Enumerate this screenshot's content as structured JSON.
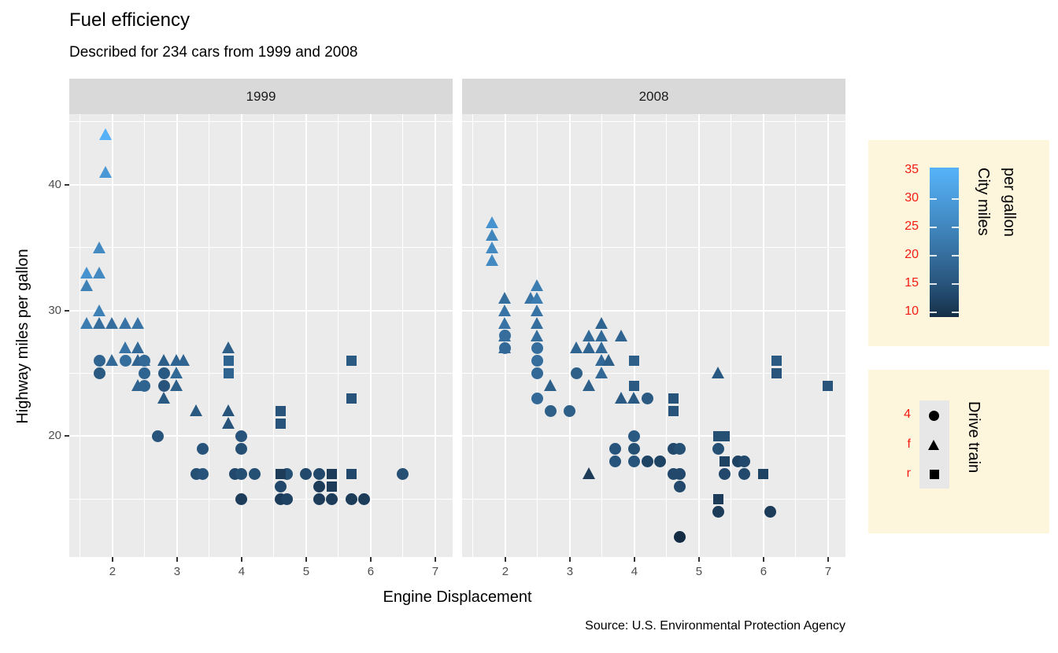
{
  "title": "Fuel efficiency",
  "subtitle": "Described for 234 cars from 1999 and 2008",
  "caption": "Source: U.S. Environmental Protection Agency",
  "axes": {
    "x": {
      "title": "Engine Displacement",
      "domain": [
        1.33,
        7.27
      ],
      "major_ticks": [
        2,
        3,
        4,
        5,
        6,
        7
      ],
      "minor_gridlines": [
        1.5,
        2.5,
        3.5,
        4.5,
        5.5,
        6.5
      ]
    },
    "y": {
      "title": "Highway miles per gallon",
      "domain": [
        10.4,
        45.6
      ],
      "major_ticks": [
        20,
        30,
        40
      ],
      "minor_gridlines": [
        15,
        25,
        35,
        45
      ]
    }
  },
  "facets": [
    {
      "label": "1999"
    },
    {
      "label": "2008"
    }
  ],
  "theme": {
    "panel_bg": "#EBEBEB",
    "strip_bg": "#D9D9D9",
    "grid_color": "#FFFFFF",
    "tick_label_color": "#4D4D4D",
    "strip_text_color": "#1A1A1A",
    "legend_bg": "#FDF6DC",
    "legend_label_color": "#F41B12",
    "text_color": "#000000"
  },
  "color_scale": {
    "low": "#132B43",
    "high": "#56B1F7",
    "domain": [
      9,
      35
    ]
  },
  "color_legend": {
    "title_lines": [
      "City miles",
      "per gallon"
    ],
    "tick_labels": [
      35,
      30,
      25,
      20,
      15,
      10
    ]
  },
  "shape_legend": {
    "title": "Drive train",
    "entries": [
      {
        "label": "4",
        "shape": "circle"
      },
      {
        "label": "f",
        "shape": "triangle"
      },
      {
        "label": "r",
        "shape": "square"
      }
    ]
  },
  "chart_data": {
    "type": "scatter",
    "title": "Fuel efficiency",
    "xlabel": "Engine Displacement",
    "ylabel": "Highway miles per gallon",
    "x_var": "displ",
    "y_var": "hwy",
    "color_var": "cty",
    "shape_var": "drv",
    "facet_var": "year",
    "shape_map": {
      "4": "circle",
      "f": "triangle",
      "r": "square"
    },
    "point_format": [
      "displ",
      "hwy",
      "drv",
      "cty"
    ],
    "facets": [
      {
        "year": "1999",
        "points": [
          [
            1.9,
            44,
            "f",
            35
          ],
          [
            1.9,
            41,
            "f",
            29
          ],
          [
            1.8,
            35,
            "f",
            26
          ],
          [
            1.6,
            33,
            "f",
            28
          ],
          [
            1.8,
            33,
            "f",
            26
          ],
          [
            1.6,
            32,
            "f",
            24
          ],
          [
            1.8,
            30,
            "f",
            24
          ],
          [
            1.6,
            29,
            "f",
            23
          ],
          [
            1.8,
            29,
            "f",
            20
          ],
          [
            2.0,
            29,
            "f",
            20
          ],
          [
            2.2,
            29,
            "f",
            21
          ],
          [
            2.4,
            29,
            "f",
            21
          ],
          [
            2.2,
            27,
            "f",
            21
          ],
          [
            2.4,
            27,
            "f",
            19
          ],
          [
            3.8,
            27,
            "f",
            17
          ],
          [
            2.0,
            26,
            "f",
            19
          ],
          [
            2.4,
            26,
            "f",
            18
          ],
          [
            2.5,
            26,
            "f",
            18
          ],
          [
            2.8,
            26,
            "f",
            17
          ],
          [
            3.0,
            26,
            "f",
            18
          ],
          [
            3.1,
            26,
            "f",
            18
          ],
          [
            3.0,
            25,
            "f",
            19
          ],
          [
            2.4,
            24,
            "f",
            18
          ],
          [
            3.0,
            24,
            "f",
            17
          ],
          [
            2.8,
            23,
            "f",
            16
          ],
          [
            3.3,
            22,
            "f",
            16
          ],
          [
            3.8,
            22,
            "f",
            15
          ],
          [
            3.8,
            21,
            "f",
            15
          ],
          [
            1.8,
            26,
            "4",
            18
          ],
          [
            2.2,
            26,
            "4",
            20
          ],
          [
            2.5,
            26,
            "4",
            19
          ],
          [
            1.8,
            25,
            "4",
            16
          ],
          [
            2.5,
            25,
            "4",
            18
          ],
          [
            2.8,
            25,
            "4",
            16
          ],
          [
            2.5,
            24,
            "4",
            18
          ],
          [
            2.8,
            24,
            "4",
            15
          ],
          [
            2.7,
            20,
            "4",
            15
          ],
          [
            4.0,
            20,
            "4",
            15
          ],
          [
            3.4,
            19,
            "4",
            15
          ],
          [
            4.0,
            19,
            "4",
            14
          ],
          [
            3.3,
            17,
            "4",
            14
          ],
          [
            3.4,
            17,
            "4",
            15
          ],
          [
            3.9,
            17,
            "4",
            13
          ],
          [
            4.0,
            17,
            "4",
            14
          ],
          [
            4.2,
            17,
            "4",
            14
          ],
          [
            4.7,
            17,
            "4",
            14
          ],
          [
            5.0,
            17,
            "4",
            13
          ],
          [
            5.2,
            17,
            "4",
            13
          ],
          [
            6.5,
            17,
            "4",
            14
          ],
          [
            4.6,
            16,
            "4",
            13
          ],
          [
            5.2,
            16,
            "4",
            11
          ],
          [
            4.0,
            15,
            "4",
            11
          ],
          [
            4.6,
            15,
            "4",
            11
          ],
          [
            4.7,
            15,
            "4",
            12
          ],
          [
            5.2,
            15,
            "4",
            11
          ],
          [
            5.4,
            15,
            "4",
            11
          ],
          [
            5.7,
            15,
            "4",
            11
          ],
          [
            5.9,
            15,
            "4",
            11
          ],
          [
            3.8,
            26,
            "r",
            18
          ],
          [
            3.8,
            25,
            "r",
            18
          ],
          [
            4.6,
            22,
            "r",
            15
          ],
          [
            4.6,
            21,
            "r",
            15
          ],
          [
            5.7,
            26,
            "r",
            16
          ],
          [
            5.7,
            23,
            "r",
            15
          ],
          [
            4.6,
            17,
            "r",
            11
          ],
          [
            5.4,
            17,
            "r",
            11
          ],
          [
            5.7,
            17,
            "r",
            13
          ],
          [
            5.4,
            16,
            "r",
            11
          ]
        ]
      },
      {
        "year": "2008",
        "points": [
          [
            1.8,
            37,
            "f",
            28
          ],
          [
            1.8,
            36,
            "f",
            25
          ],
          [
            1.8,
            35,
            "f",
            26
          ],
          [
            1.8,
            34,
            "f",
            26
          ],
          [
            2.0,
            31,
            "f",
            20
          ],
          [
            2.0,
            30,
            "f",
            21
          ],
          [
            2.0,
            29,
            "f",
            21
          ],
          [
            2.0,
            28,
            "f",
            20
          ],
          [
            2.0,
            27,
            "f",
            19
          ],
          [
            2.5,
            32,
            "f",
            23
          ],
          [
            2.4,
            31,
            "f",
            21
          ],
          [
            2.5,
            31,
            "f",
            23
          ],
          [
            2.5,
            30,
            "f",
            21
          ],
          [
            2.5,
            29,
            "f",
            20
          ],
          [
            2.5,
            28,
            "f",
            20
          ],
          [
            2.7,
            24,
            "f",
            17
          ],
          [
            3.1,
            27,
            "f",
            18
          ],
          [
            3.3,
            28,
            "f",
            19
          ],
          [
            3.5,
            29,
            "f",
            18
          ],
          [
            3.5,
            28,
            "f",
            19
          ],
          [
            3.8,
            28,
            "f",
            18
          ],
          [
            3.3,
            27,
            "f",
            18
          ],
          [
            3.5,
            27,
            "f",
            19
          ],
          [
            3.5,
            26,
            "f",
            19
          ],
          [
            3.6,
            26,
            "f",
            17
          ],
          [
            3.5,
            25,
            "f",
            19
          ],
          [
            3.3,
            24,
            "f",
            17
          ],
          [
            3.8,
            23,
            "f",
            16
          ],
          [
            4.0,
            23,
            "f",
            16
          ],
          [
            3.3,
            17,
            "f",
            11
          ],
          [
            5.3,
            25,
            "f",
            16
          ],
          [
            2.0,
            28,
            "4",
            20
          ],
          [
            2.0,
            27,
            "4",
            19
          ],
          [
            2.5,
            27,
            "4",
            20
          ],
          [
            2.5,
            26,
            "4",
            20
          ],
          [
            2.5,
            25,
            "4",
            19
          ],
          [
            2.5,
            23,
            "4",
            19
          ],
          [
            2.7,
            22,
            "4",
            17
          ],
          [
            3.0,
            22,
            "4",
            17
          ],
          [
            3.1,
            25,
            "4",
            17
          ],
          [
            4.2,
            23,
            "4",
            16
          ],
          [
            4.0,
            20,
            "4",
            16
          ],
          [
            3.7,
            19,
            "4",
            15
          ],
          [
            4.0,
            19,
            "4",
            14
          ],
          [
            4.6,
            19,
            "4",
            13
          ],
          [
            4.7,
            19,
            "4",
            14
          ],
          [
            3.7,
            18,
            "4",
            15
          ],
          [
            4.0,
            18,
            "4",
            15
          ],
          [
            4.2,
            18,
            "4",
            12
          ],
          [
            4.4,
            18,
            "4",
            12
          ],
          [
            4.6,
            17,
            "4",
            13
          ],
          [
            4.7,
            17,
            "4",
            13
          ],
          [
            4.7,
            16,
            "4",
            13
          ],
          [
            5.3,
            19,
            "4",
            14
          ],
          [
            5.4,
            17,
            "4",
            13
          ],
          [
            5.6,
            18,
            "4",
            12
          ],
          [
            5.7,
            18,
            "4",
            13
          ],
          [
            5.7,
            17,
            "4",
            13
          ],
          [
            5.3,
            14,
            "4",
            11
          ],
          [
            6.1,
            14,
            "4",
            11
          ],
          [
            4.7,
            12,
            "4",
            9
          ],
          [
            4.0,
            26,
            "r",
            17
          ],
          [
            4.0,
            24,
            "r",
            16
          ],
          [
            4.6,
            23,
            "r",
            15
          ],
          [
            4.6,
            22,
            "r",
            15
          ],
          [
            5.3,
            20,
            "r",
            14
          ],
          [
            5.4,
            20,
            "r",
            14
          ],
          [
            5.4,
            18,
            "r",
            12
          ],
          [
            5.3,
            15,
            "r",
            11
          ],
          [
            6.0,
            17,
            "r",
            12
          ],
          [
            6.2,
            26,
            "r",
            16
          ],
          [
            6.2,
            25,
            "r",
            15
          ],
          [
            7.0,
            24,
            "r",
            15
          ]
        ]
      }
    ]
  }
}
